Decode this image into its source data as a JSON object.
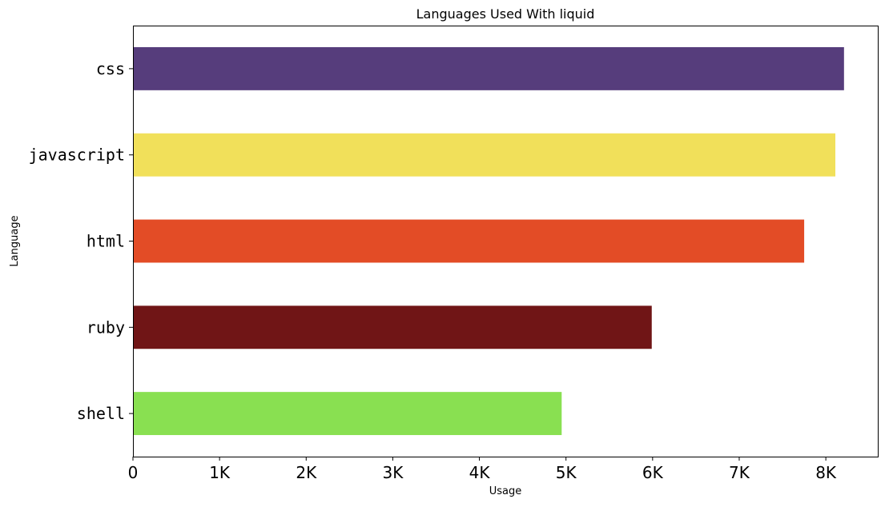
{
  "chart_data": {
    "type": "bar",
    "orientation": "horizontal",
    "title": "Languages Used With liquid",
    "xlabel": "Usage",
    "ylabel": "Language",
    "categories": [
      "css",
      "javascript",
      "html",
      "ruby",
      "shell"
    ],
    "values": [
      8210,
      8110,
      7750,
      5990,
      4950
    ],
    "colors": [
      "#563d7c",
      "#f1e05a",
      "#e34c26",
      "#701516",
      "#89e051"
    ],
    "xlim": [
      0,
      8600
    ],
    "x_ticks": [
      0,
      1000,
      2000,
      3000,
      4000,
      5000,
      6000,
      7000,
      8000
    ],
    "x_tick_labels": [
      "0",
      "1K",
      "2K",
      "3K",
      "4K",
      "5K",
      "6K",
      "7K",
      "8K"
    ],
    "grid": false,
    "legend": "none"
  }
}
